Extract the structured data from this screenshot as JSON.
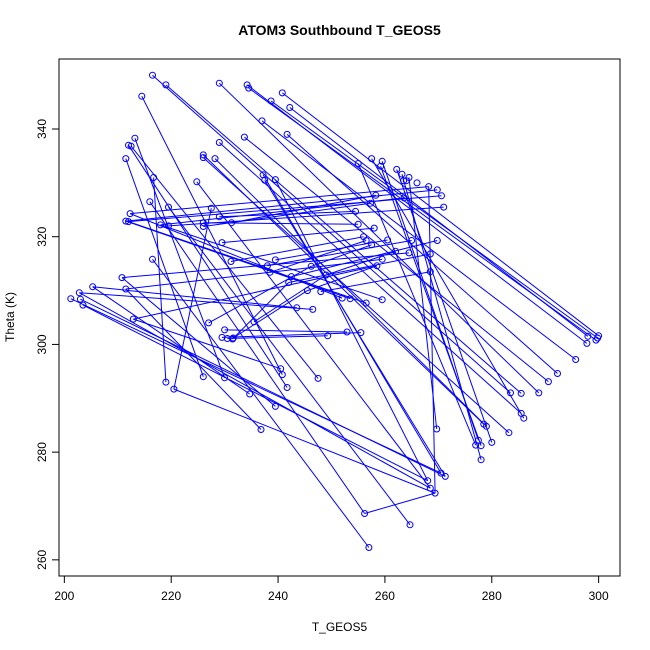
{
  "chart_data": {
    "type": "line+scatter",
    "title": "ATOM3 Southbound T_GEOS5",
    "xlabel": "T_GEOS5",
    "ylabel": "Theta (K)",
    "xlim": [
      199,
      304
    ],
    "ylim": [
      257,
      353
    ],
    "xticks": [
      200,
      220,
      240,
      260,
      280,
      300
    ],
    "yticks": [
      260,
      280,
      300,
      320,
      340
    ],
    "grid": false,
    "color": "#0000ff",
    "points": [
      [
        216.5,
        350
      ],
      [
        219,
        348.2
      ],
      [
        229,
        348.5
      ],
      [
        234.2,
        348.2
      ],
      [
        234.5,
        347.6
      ],
      [
        240.8,
        346.7
      ],
      [
        214.5,
        346.1
      ],
      [
        238.7,
        345.2
      ],
      [
        242.2,
        344
      ],
      [
        237,
        341.5
      ],
      [
        233.7,
        338.5
      ],
      [
        213.2,
        338.3
      ],
      [
        241.7,
        339
      ],
      [
        229,
        337.5
      ],
      [
        212,
        337
      ],
      [
        212.5,
        336.8
      ],
      [
        211.5,
        334.5
      ],
      [
        226,
        335.2
      ],
      [
        228.2,
        334.5
      ],
      [
        226,
        334.7
      ],
      [
        257.5,
        334.5
      ],
      [
        259.5,
        334
      ],
      [
        255,
        333.6
      ],
      [
        259.2,
        333.1
      ],
      [
        262.2,
        332.5
      ],
      [
        263.2,
        331.6
      ],
      [
        264.5,
        331
      ],
      [
        264,
        330.4
      ],
      [
        263.5,
        330.4
      ],
      [
        266,
        330
      ],
      [
        216.7,
        331
      ],
      [
        237.2,
        331.5
      ],
      [
        237.5,
        330.5
      ],
      [
        239.5,
        330.6
      ],
      [
        224.8,
        330.2
      ],
      [
        268.2,
        329.3
      ],
      [
        269.8,
        328.7
      ],
      [
        270.6,
        327.6
      ],
      [
        263.6,
        327.2
      ],
      [
        271,
        325.5
      ],
      [
        258.3,
        327.7
      ],
      [
        257.3,
        326.2
      ],
      [
        216,
        326.5
      ],
      [
        219.5,
        325.5
      ],
      [
        227.5,
        325.3
      ],
      [
        254.5,
        324.7
      ],
      [
        212.3,
        324.3
      ],
      [
        229,
        323.7
      ],
      [
        226,
        322.6
      ],
      [
        211.5,
        322.9
      ],
      [
        212,
        322.8
      ],
      [
        218,
        322.2
      ],
      [
        219.5,
        322
      ],
      [
        231.3,
        322.6
      ],
      [
        226,
        321.9
      ],
      [
        255,
        322.3
      ],
      [
        258,
        321.6
      ],
      [
        256,
        320
      ],
      [
        260.5,
        319.4
      ],
      [
        265,
        319.3
      ],
      [
        256.5,
        319.3
      ],
      [
        269.8,
        319.3
      ],
      [
        257.5,
        318.5
      ],
      [
        229.5,
        318.9
      ],
      [
        262,
        317.3
      ],
      [
        264.5,
        317
      ],
      [
        268.5,
        316.8
      ],
      [
        216.5,
        315.8
      ],
      [
        239.5,
        315.7
      ],
      [
        259.5,
        315.8
      ],
      [
        231.2,
        315.4
      ],
      [
        238,
        314.6
      ],
      [
        238.5,
        313.4
      ],
      [
        242.5,
        312.6
      ],
      [
        258.5,
        314.6
      ],
      [
        246.2,
        314.5
      ],
      [
        249,
        312.9
      ],
      [
        210.8,
        312.4
      ],
      [
        242,
        311.5
      ],
      [
        268.5,
        313.5
      ],
      [
        211.5,
        310.3
      ],
      [
        245.5,
        310
      ],
      [
        248,
        309.8
      ],
      [
        205.3,
        310.7
      ],
      [
        202.8,
        309.6
      ],
      [
        201.2,
        308.5
      ],
      [
        203,
        308.4
      ],
      [
        252,
        308.6
      ],
      [
        253.5,
        308.5
      ],
      [
        256.5,
        307.7
      ],
      [
        259.5,
        308.3
      ],
      [
        203.5,
        307.3
      ],
      [
        243.5,
        306.8
      ],
      [
        246.5,
        306.5
      ],
      [
        212.9,
        304.7
      ],
      [
        227,
        304
      ],
      [
        235.5,
        304.2
      ],
      [
        230,
        302.7
      ],
      [
        252.9,
        302.3
      ],
      [
        255.5,
        302.2
      ],
      [
        229.5,
        301.3
      ],
      [
        230.5,
        301.1
      ],
      [
        231.5,
        301
      ],
      [
        231.6,
        301.2
      ],
      [
        249.3,
        301.6
      ],
      [
        300,
        301.6
      ],
      [
        299.8,
        301.2
      ],
      [
        299.5,
        300.8
      ],
      [
        298,
        301.5
      ],
      [
        297.8,
        300.2
      ],
      [
        295.7,
        297.2
      ],
      [
        292.3,
        294.6
      ],
      [
        290.6,
        293.1
      ],
      [
        240.5,
        295.5
      ],
      [
        240.8,
        294.4
      ],
      [
        247.5,
        293.7
      ],
      [
        230,
        293.8
      ],
      [
        226,
        294
      ],
      [
        219,
        293
      ],
      [
        241.7,
        292
      ],
      [
        220.5,
        291.7
      ],
      [
        234.7,
        290.8
      ],
      [
        283.5,
        291
      ],
      [
        285.5,
        290.9
      ],
      [
        288.8,
        291
      ],
      [
        239.5,
        288.5
      ],
      [
        285.5,
        287.2
      ],
      [
        286,
        286.3
      ],
      [
        278.5,
        285.2
      ],
      [
        279,
        284.8
      ],
      [
        236.8,
        284.2
      ],
      [
        269.7,
        284.3
      ],
      [
        283.2,
        283.6
      ],
      [
        277.5,
        282.2
      ],
      [
        277,
        281.3
      ],
      [
        278,
        281.2
      ],
      [
        280,
        281.8
      ],
      [
        278,
        278.6
      ],
      [
        270.5,
        276.1
      ],
      [
        271.3,
        275.5
      ],
      [
        268,
        274.7
      ],
      [
        268.5,
        273.3
      ],
      [
        269.4,
        272.4
      ],
      [
        256.2,
        268.6
      ],
      [
        264.7,
        266.5
      ],
      [
        257,
        262.3
      ]
    ],
    "segments": [
      [
        [
          216.5,
          350
        ],
        [
          283.5,
          291
        ]
      ],
      [
        [
          219,
          348.2
        ],
        [
          285.5,
          290.9
        ]
      ],
      [
        [
          229,
          348.5
        ],
        [
          288.8,
          291
        ]
      ],
      [
        [
          234.2,
          348.2
        ],
        [
          297.8,
          300.2
        ]
      ],
      [
        [
          234.5,
          347.6
        ],
        [
          299.5,
          300.8
        ]
      ],
      [
        [
          240.8,
          346.7
        ],
        [
          300,
          301.6
        ]
      ],
      [
        [
          214.5,
          346.1
        ],
        [
          240.8,
          294.4
        ]
      ],
      [
        [
          238.7,
          345.2
        ],
        [
          299.8,
          301.2
        ]
      ],
      [
        [
          242.2,
          344
        ],
        [
          298,
          301.5
        ]
      ],
      [
        [
          237,
          341.5
        ],
        [
          295.7,
          297.2
        ]
      ],
      [
        [
          233.7,
          338.5
        ],
        [
          290.6,
          293.1
        ]
      ],
      [
        [
          213.2,
          338.3
        ],
        [
          230,
          293.8
        ]
      ],
      [
        [
          241.7,
          339
        ],
        [
          292.3,
          294.6
        ]
      ],
      [
        [
          229,
          337.5
        ],
        [
          285.5,
          287.2
        ]
      ],
      [
        [
          212,
          337
        ],
        [
          241.7,
          292
        ]
      ],
      [
        [
          212.5,
          336.8
        ],
        [
          247.5,
          293.7
        ]
      ],
      [
        [
          211.5,
          334.5
        ],
        [
          226,
          294
        ]
      ],
      [
        [
          226,
          335.2
        ],
        [
          278.5,
          285.2
        ]
      ],
      [
        [
          228.2,
          334.5
        ],
        [
          279,
          284.8
        ]
      ],
      [
        [
          226,
          334.7
        ],
        [
          283.2,
          283.6
        ]
      ],
      [
        [
          257.5,
          334.5
        ],
        [
          286,
          286.3
        ]
      ],
      [
        [
          259.5,
          334
        ],
        [
          277.5,
          282.2
        ]
      ],
      [
        [
          255,
          333.6
        ],
        [
          277,
          281.3
        ]
      ],
      [
        [
          259.2,
          333.1
        ],
        [
          278,
          281.2
        ]
      ],
      [
        [
          262.2,
          332.5
        ],
        [
          280,
          281.8
        ]
      ],
      [
        [
          263.2,
          331.6
        ],
        [
          278,
          278.6
        ]
      ],
      [
        [
          264.5,
          331
        ],
        [
          269.7,
          284.3
        ]
      ],
      [
        [
          216.7,
          331
        ],
        [
          219,
          293
        ]
      ],
      [
        [
          237.2,
          331.5
        ],
        [
          270.5,
          276.1
        ]
      ],
      [
        [
          237.5,
          330.5
        ],
        [
          271.3,
          275.5
        ]
      ],
      [
        [
          239.5,
          330.6
        ],
        [
          268,
          274.7
        ]
      ],
      [
        [
          224.8,
          330.2
        ],
        [
          268.5,
          273.3
        ]
      ],
      [
        [
          268.2,
          329.3
        ],
        [
          269.4,
          272.4
        ]
      ],
      [
        [
          216,
          326.5
        ],
        [
          256.2,
          268.6
        ]
      ],
      [
        [
          219.5,
          325.5
        ],
        [
          264.7,
          266.5
        ]
      ],
      [
        [
          216.5,
          315.8
        ],
        [
          257,
          262.3
        ]
      ],
      [
        [
          227.5,
          325.3
        ],
        [
          220.5,
          291.7
        ]
      ],
      [
        [
          212.3,
          324.3
        ],
        [
          268.2,
          329.3
        ]
      ],
      [
        [
          211.5,
          322.9
        ],
        [
          269.8,
          328.7
        ]
      ],
      [
        [
          212,
          322.8
        ],
        [
          270.6,
          327.6
        ]
      ],
      [
        [
          218,
          322.2
        ],
        [
          263.6,
          327.2
        ]
      ],
      [
        [
          219.5,
          322
        ],
        [
          271,
          325.5
        ]
      ],
      [
        [
          231.3,
          322.6
        ],
        [
          258.3,
          327.7
        ]
      ],
      [
        [
          226,
          321.9
        ],
        [
          257.3,
          326.2
        ]
      ],
      [
        [
          229,
          323.7
        ],
        [
          254.5,
          324.7
        ]
      ],
      [
        [
          226,
          322.6
        ],
        [
          255,
          322.3
        ]
      ],
      [
        [
          229.5,
          318.9
        ],
        [
          258,
          321.6
        ]
      ],
      [
        [
          231.2,
          315.4
        ],
        [
          256,
          320
        ]
      ],
      [
        [
          239.5,
          315.7
        ],
        [
          260.5,
          319.4
        ]
      ],
      [
        [
          238,
          314.6
        ],
        [
          265,
          319.3
        ]
      ],
      [
        [
          238.5,
          313.4
        ],
        [
          256.5,
          319.3
        ]
      ],
      [
        [
          242.5,
          312.6
        ],
        [
          269.8,
          319.3
        ]
      ],
      [
        [
          246.2,
          314.5
        ],
        [
          257.5,
          318.5
        ]
      ],
      [
        [
          249,
          312.9
        ],
        [
          262,
          317.3
        ]
      ],
      [
        [
          210.8,
          312.4
        ],
        [
          264.5,
          317
        ]
      ],
      [
        [
          242,
          311.5
        ],
        [
          268.5,
          316.8
        ]
      ],
      [
        [
          211.5,
          310.3
        ],
        [
          259.5,
          315.8
        ]
      ],
      [
        [
          245.5,
          310
        ],
        [
          258.5,
          314.6
        ]
      ],
      [
        [
          248,
          309.8
        ],
        [
          268.5,
          313.5
        ]
      ],
      [
        [
          212.3,
          324.3
        ],
        [
          252,
          308.6
        ]
      ],
      [
        [
          211.5,
          322.9
        ],
        [
          253.5,
          308.5
        ]
      ],
      [
        [
          212,
          322.8
        ],
        [
          256.5,
          307.7
        ]
      ],
      [
        [
          218,
          322.2
        ],
        [
          259.5,
          308.3
        ]
      ],
      [
        [
          205.3,
          310.7
        ],
        [
          243.5,
          306.8
        ]
      ],
      [
        [
          202.8,
          309.6
        ],
        [
          246.5,
          306.5
        ]
      ],
      [
        [
          212.9,
          304.7
        ],
        [
          258.5,
          314.6
        ]
      ],
      [
        [
          227,
          304
        ],
        [
          246.2,
          314.5
        ]
      ],
      [
        [
          235.5,
          304.2
        ],
        [
          249,
          312.9
        ]
      ],
      [
        [
          230,
          302.7
        ],
        [
          252.9,
          302.3
        ]
      ],
      [
        [
          229.5,
          301.3
        ],
        [
          255.5,
          302.2
        ]
      ],
      [
        [
          230.5,
          301.1
        ],
        [
          249.3,
          301.6
        ]
      ],
      [
        [
          231.5,
          301
        ],
        [
          242,
          311.5
        ]
      ],
      [
        [
          231.6,
          301.2
        ],
        [
          245.5,
          310
        ]
      ],
      [
        [
          201.2,
          308.5
        ],
        [
          270.5,
          276.1
        ]
      ],
      [
        [
          203,
          308.4
        ],
        [
          271.3,
          275.5
        ]
      ],
      [
        [
          203.5,
          307.3
        ],
        [
          268,
          274.7
        ]
      ],
      [
        [
          212.9,
          304.7
        ],
        [
          240.5,
          295.5
        ]
      ],
      [
        [
          205.3,
          310.7
        ],
        [
          234.7,
          290.8
        ]
      ],
      [
        [
          210.8,
          312.4
        ],
        [
          239.5,
          288.5
        ]
      ],
      [
        [
          211.5,
          310.3
        ],
        [
          236.8,
          284.2
        ]
      ],
      [
        [
          202.8,
          309.6
        ],
        [
          268.5,
          273.3
        ]
      ],
      [
        [
          256.2,
          268.6
        ],
        [
          269.4,
          272.4
        ]
      ],
      [
        [
          220.5,
          291.7
        ],
        [
          269.4,
          272.4
        ]
      ]
    ]
  }
}
